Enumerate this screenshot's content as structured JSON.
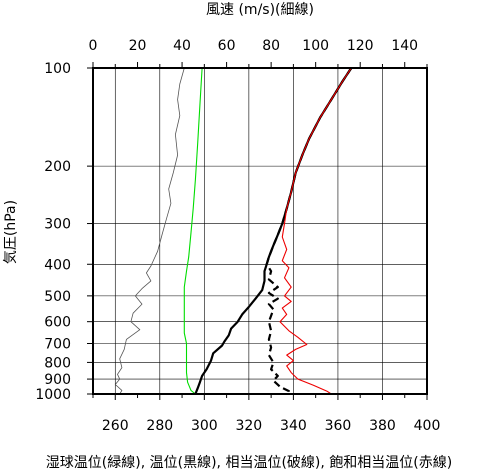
{
  "chart_data": {
    "type": "line",
    "title": "風速 (m/s)(細線)",
    "ylabel": "気圧(hPa)",
    "xlabel": "湿球温位(緑線), 温位(黒線), 相当温位(破線), 飽和相当温位(赤線)",
    "y_scale": "log",
    "y_reversed": true,
    "ylim": [
      1000,
      100
    ],
    "y_ticks": [
      100,
      200,
      300,
      400,
      500,
      600,
      700,
      800,
      900,
      1000
    ],
    "y_tick_labels": [
      "100",
      "200",
      "300",
      "400",
      "500",
      "600",
      "700",
      "800",
      "900",
      "1000"
    ],
    "x_bottom_ticks": [
      260,
      280,
      300,
      320,
      340,
      360,
      380,
      400
    ],
    "x_bottom_tick_labels": [
      "260",
      "280",
      "300",
      "320",
      "340",
      "360",
      "380",
      "400"
    ],
    "x_bottom_range": [
      250,
      400
    ],
    "x_top_ticks": [
      0,
      20,
      40,
      60,
      80,
      100,
      120,
      140
    ],
    "x_top_tick_labels": [
      "0",
      "20",
      "40",
      "60",
      "80",
      "100",
      "120",
      "140"
    ],
    "x_top_range": [
      0,
      150
    ],
    "grid": true,
    "series": [
      {
        "key": "wind",
        "axis": "top",
        "color": "#555555",
        "style": "thin",
        "points": [
          [
            41,
            100
          ],
          [
            39,
            112
          ],
          [
            38,
            125
          ],
          [
            39,
            140
          ],
          [
            37,
            160
          ],
          [
            38,
            185
          ],
          [
            36,
            210
          ],
          [
            34,
            235
          ],
          [
            35,
            260
          ],
          [
            33,
            290
          ],
          [
            31,
            325
          ],
          [
            29,
            365
          ],
          [
            26,
            405
          ],
          [
            24,
            425
          ],
          [
            26,
            450
          ],
          [
            22,
            475
          ],
          [
            19,
            500
          ],
          [
            22,
            530
          ],
          [
            18,
            565
          ],
          [
            17,
            600
          ],
          [
            21,
            635
          ],
          [
            15,
            680
          ],
          [
            14,
            730
          ],
          [
            12,
            780
          ],
          [
            13,
            830
          ],
          [
            11,
            870
          ],
          [
            12,
            900
          ],
          [
            10,
            935
          ],
          [
            13,
            975
          ],
          [
            12,
            1000
          ]
        ]
      },
      {
        "key": "wet_bulb_theta",
        "axis": "bottom",
        "color": "#00dd00",
        "style": "solid",
        "points": [
          [
            299,
            100
          ],
          [
            298,
            130
          ],
          [
            297,
            170
          ],
          [
            296,
            220
          ],
          [
            295,
            270
          ],
          [
            294,
            320
          ],
          [
            293,
            380
          ],
          [
            292,
            420
          ],
          [
            291,
            470
          ],
          [
            291,
            500
          ],
          [
            291,
            550
          ],
          [
            291,
            600
          ],
          [
            291,
            650
          ],
          [
            292,
            700
          ],
          [
            292,
            750
          ],
          [
            292,
            800
          ],
          [
            292,
            860
          ],
          [
            292.5,
            920
          ],
          [
            294,
            975
          ],
          [
            296,
            1000
          ]
        ]
      },
      {
        "key": "theta",
        "axis": "bottom",
        "color": "#000000",
        "style": "thick",
        "points": [
          [
            366,
            100
          ],
          [
            362,
            110
          ],
          [
            357,
            125
          ],
          [
            352,
            142
          ],
          [
            347,
            165
          ],
          [
            344,
            185
          ],
          [
            341,
            210
          ],
          [
            339,
            240
          ],
          [
            337,
            270
          ],
          [
            335,
            300
          ],
          [
            333,
            325
          ],
          [
            331,
            350
          ],
          [
            329,
            380
          ],
          [
            328,
            400
          ],
          [
            327,
            420
          ],
          [
            327,
            450
          ],
          [
            326,
            480
          ],
          [
            323,
            510
          ],
          [
            320,
            540
          ],
          [
            317,
            570
          ],
          [
            315,
            600
          ],
          [
            312,
            630
          ],
          [
            311,
            660
          ],
          [
            309,
            690
          ],
          [
            308,
            710
          ],
          [
            304,
            750
          ],
          [
            303,
            790
          ],
          [
            301,
            840
          ],
          [
            299,
            880
          ],
          [
            298,
            920
          ],
          [
            297,
            960
          ],
          [
            296,
            1000
          ]
        ]
      },
      {
        "key": "theta_e",
        "axis": "bottom",
        "color": "#000000",
        "style": "dashed",
        "points": [
          [
            366,
            100
          ],
          [
            362,
            110
          ],
          [
            357,
            125
          ],
          [
            352,
            142
          ],
          [
            347,
            165
          ],
          [
            344,
            185
          ],
          [
            341,
            210
          ],
          [
            339,
            240
          ],
          [
            337,
            270
          ],
          [
            335,
            300
          ],
          [
            333,
            325
          ],
          [
            331,
            350
          ],
          [
            329,
            380
          ],
          [
            328,
            400
          ],
          [
            330,
            420
          ],
          [
            329,
            445
          ],
          [
            333,
            470
          ],
          [
            329,
            490
          ],
          [
            333,
            510
          ],
          [
            329,
            530
          ],
          [
            331,
            550
          ],
          [
            330,
            575
          ],
          [
            329,
            600
          ],
          [
            330,
            640
          ],
          [
            329,
            680
          ],
          [
            330,
            720
          ],
          [
            329,
            760
          ],
          [
            331,
            800
          ],
          [
            330,
            840
          ],
          [
            333,
            880
          ],
          [
            331,
            910
          ],
          [
            334,
            950
          ],
          [
            338,
            980
          ],
          [
            338,
            1000
          ]
        ]
      },
      {
        "key": "theta_es",
        "axis": "bottom",
        "color": "#ee0000",
        "style": "solid",
        "points": [
          [
            366,
            100
          ],
          [
            362,
            110
          ],
          [
            357,
            125
          ],
          [
            352,
            142
          ],
          [
            347,
            165
          ],
          [
            344,
            185
          ],
          [
            341,
            210
          ],
          [
            339,
            240
          ],
          [
            337,
            270
          ],
          [
            336,
            300
          ],
          [
            335,
            330
          ],
          [
            337,
            360
          ],
          [
            335,
            390
          ],
          [
            338,
            410
          ],
          [
            336,
            440
          ],
          [
            339,
            470
          ],
          [
            336,
            500
          ],
          [
            339,
            520
          ],
          [
            335,
            545
          ],
          [
            337,
            570
          ],
          [
            334,
            600
          ],
          [
            338,
            640
          ],
          [
            342,
            670
          ],
          [
            346,
            705
          ],
          [
            341,
            730
          ],
          [
            337,
            760
          ],
          [
            340,
            790
          ],
          [
            337,
            820
          ],
          [
            339,
            860
          ],
          [
            342,
            900
          ],
          [
            349,
            940
          ],
          [
            355,
            980
          ],
          [
            357,
            1000
          ]
        ]
      }
    ]
  }
}
